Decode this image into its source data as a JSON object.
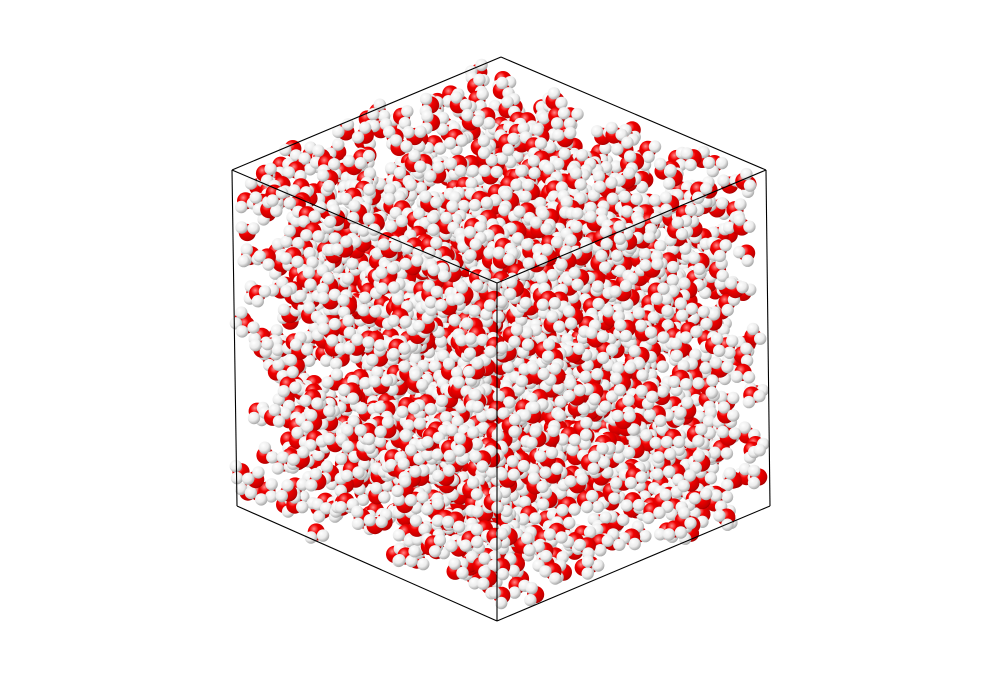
{
  "scene": {
    "subject": "water-box-molecular-rendering",
    "molecule": "H2O",
    "style": "space-filling",
    "atoms": [
      {
        "element": "O",
        "color": "#e00000"
      },
      {
        "element": "H",
        "color": "#f2f2f2"
      }
    ],
    "background_color": "#ffffff",
    "box_edge_color": "#000000",
    "show_box_edges": true
  }
}
